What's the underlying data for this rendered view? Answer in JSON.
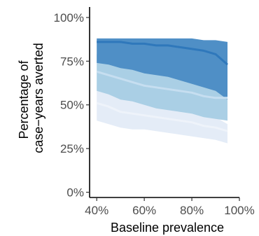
{
  "chart_data": {
    "type": "area",
    "title": "",
    "xlabel": "Baseline prevalence",
    "ylabel_lines": [
      "Percentage of",
      "case−years averted"
    ],
    "xlim": [
      37,
      100
    ],
    "ylim": [
      -3,
      106
    ],
    "x_ticks": [
      {
        "value": 40,
        "label": "40%"
      },
      {
        "value": 60,
        "label": "60%"
      },
      {
        "value": 80,
        "label": "80%"
      },
      {
        "value": 100,
        "label": "100%"
      }
    ],
    "y_ticks": [
      {
        "value": 0,
        "label": "0%"
      },
      {
        "value": 25,
        "label": "25%"
      },
      {
        "value": 50,
        "label": "50%"
      },
      {
        "value": 75,
        "label": "75%"
      },
      {
        "value": 100,
        "label": "100%"
      }
    ],
    "grid": false,
    "legend": "none",
    "x": [
      40,
      45,
      50,
      55,
      60,
      65,
      70,
      75,
      80,
      85,
      90,
      95
    ],
    "series": [
      {
        "color": "#e4ecf7",
        "lower": [
          41,
          39,
          37,
          36,
          36,
          35,
          34,
          33,
          32,
          31,
          30,
          28
        ],
        "upper": [
          61,
          59,
          56,
          55,
          53,
          51,
          50,
          48,
          47,
          45,
          43,
          39
        ],
        "center": [
          51,
          49,
          46,
          45,
          44,
          43,
          42,
          41,
          40,
          38,
          37,
          35
        ],
        "line_color": "#eef3fa"
      },
      {
        "color": "#aacfe5",
        "lower": [
          58,
          56,
          53,
          52,
          50,
          48,
          47,
          46,
          45,
          43,
          42,
          41
        ],
        "upper": [
          79,
          77,
          74,
          73,
          70,
          70,
          68,
          67,
          65,
          63,
          61,
          57
        ],
        "center": [
          69,
          67,
          65,
          63,
          61,
          60,
          59,
          58,
          57,
          55,
          54,
          54
        ],
        "line_color": "#c6def0"
      },
      {
        "color": "#4f8fc6",
        "lower": [
          74,
          73,
          71,
          70,
          68,
          67,
          66,
          64,
          62,
          60,
          58,
          53
        ],
        "upper": [
          88,
          88,
          88,
          88,
          88,
          88,
          88,
          88,
          88,
          87,
          87,
          86
        ],
        "center": [
          86,
          86,
          86,
          85,
          85,
          84,
          84,
          83,
          82,
          81,
          79,
          73
        ],
        "line_color": "#2f78bb"
      }
    ]
  }
}
